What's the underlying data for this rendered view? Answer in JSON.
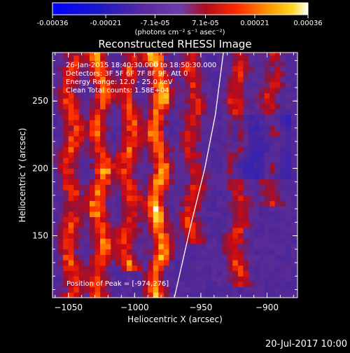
{
  "chart_data": {
    "type": "heatmap",
    "title": "Reconstructed RHESSI Image",
    "xlabel": "Heliocentric X (arcsec)",
    "ylabel": "Heliocentric Y (arcsec)",
    "xlim": [
      -1062,
      -877
    ],
    "ylim": [
      104,
      286
    ],
    "xticks": [
      -1050,
      -1000,
      -950,
      -900
    ],
    "yticks": [
      150,
      200,
      250
    ],
    "colorbar": {
      "ticks": [
        "-0.00036",
        "-0.00021",
        "-7.1e-05",
        "7.1e-05",
        "0.00021",
        "0.00036"
      ],
      "tick_values": [
        -0.00036,
        -0.00021,
        -7.1e-05,
        7.1e-05,
        0.00021,
        0.00036
      ],
      "range": [
        -0.00036,
        0.00036
      ],
      "unit_label": "(photons cm⁻² s⁻¹ asec⁻²)"
    },
    "info": [
      "26-Jan-2015 18:40:30.000 to 18:50:30.000",
      "Detectors: 3F 5F 6F 7F 8F 9F, Att 0",
      "Energy Range: 12.0 - 25.0 keV",
      "Clean    Total counts: 1.58E+04"
    ],
    "peak_label": "Position of Peak = [-974,276]",
    "peak": {
      "x": -974,
      "y": 276
    },
    "limb_arc": [
      {
        "x": -970,
        "y": 104
      },
      {
        "x": -957,
        "y": 160
      },
      {
        "x": -947,
        "y": 200
      },
      {
        "x": -939,
        "y": 240
      },
      {
        "x": -933,
        "y": 286
      }
    ],
    "ridges": [
      {
        "x": -1048,
        "y_min": 108,
        "y_max": 286,
        "peak": 0.00024
      },
      {
        "x": -1026,
        "y_min": 108,
        "y_max": 286,
        "peak": 0.0003
      },
      {
        "x": -1004,
        "y_min": 130,
        "y_max": 286,
        "peak": 0.00026
      },
      {
        "x": -982,
        "y_min": 110,
        "y_max": 286,
        "peak": 0.00036
      },
      {
        "x": -956,
        "y_min": 150,
        "y_max": 286,
        "peak": 0.0002
      },
      {
        "x": -922,
        "y_min": 120,
        "y_max": 280,
        "peak": 0.0002
      },
      {
        "x": -896,
        "y_min": 180,
        "y_max": 286,
        "peak": 0.00018
      }
    ],
    "timestamp": "20-Jul-2017 10:00"
  }
}
